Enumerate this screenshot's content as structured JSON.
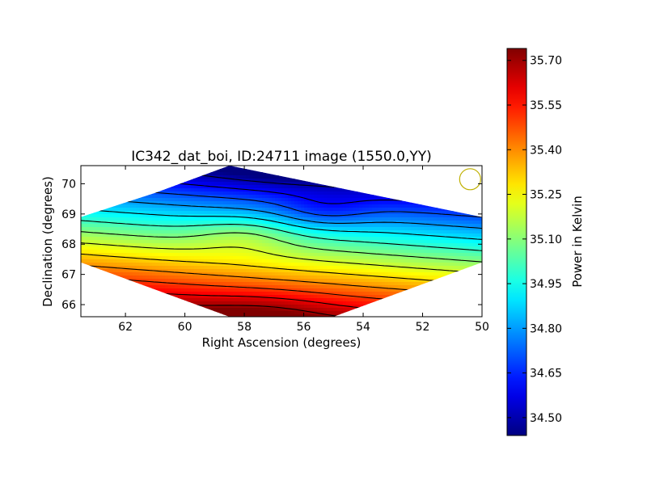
{
  "chart_data": [
    {
      "type": "heatmap",
      "title": "IC342_dat_boi, ID:24711 image (1550.0,YY)",
      "xlabel": "Right Ascension (degrees)",
      "ylabel": "Declination (degrees)",
      "xlim": [
        63.5,
        50.0
      ],
      "ylim": [
        65.6,
        70.6
      ],
      "x_ticks": [
        62,
        60,
        58,
        56,
        54,
        52,
        50
      ],
      "y_ticks": [
        66,
        67,
        68,
        69,
        70
      ],
      "x_tick_labels": [
        "62",
        "60",
        "58",
        "56",
        "54",
        "52",
        "50"
      ],
      "y_tick_labels": [
        "66",
        "67",
        "68",
        "69",
        "70"
      ],
      "grid": false,
      "colormap": "jet",
      "contour_color": "#000000",
      "contour_levels": [
        34.5,
        34.6,
        34.7,
        34.8,
        34.9,
        35.0,
        35.1,
        35.2,
        35.3,
        35.4,
        35.5,
        35.6,
        35.7
      ],
      "footprint": {
        "corners": [
          [
            58.5,
            70.6
          ],
          [
            50.0,
            68.9
          ],
          [
            50.0,
            67.4
          ],
          [
            55.0,
            65.6
          ],
          [
            58.5,
            65.6
          ],
          [
            63.5,
            67.4
          ],
          [
            63.5,
            68.9
          ],
          [
            61.0,
            69.7
          ]
        ]
      },
      "field_model": {
        "base": 35.05,
        "dec_center": 68.1,
        "dec_slope": -0.27,
        "ra_center": 56.75,
        "ra_tilt": 0.02,
        "bumps": [
          {
            "ra": 58.0,
            "dec": 68.3,
            "amp": 0.1,
            "sra": 1.2,
            "sdec": 0.45
          },
          {
            "ra": 55.3,
            "dec": 69.1,
            "amp": -0.1,
            "sra": 1.1,
            "sdec": 0.4
          },
          {
            "ra": 57.3,
            "dec": 65.8,
            "amp": 0.06,
            "sra": 1.6,
            "sdec": 0.45
          },
          {
            "ra": 56.5,
            "dec": 70.5,
            "amp": -0.07,
            "sra": 1.8,
            "sdec": 0.4
          }
        ],
        "min": 34.44,
        "max": 35.74
      },
      "beam_marker": {
        "ra": 50.4,
        "dec": 70.15,
        "color": "#bfb000"
      },
      "colorbar": {
        "label": "Power in Kelvin",
        "min": 34.44,
        "max": 35.74,
        "ticks": [
          34.5,
          34.65,
          34.8,
          34.95,
          35.1,
          35.25,
          35.4,
          35.55,
          35.7
        ],
        "tick_labels": [
          "34.50",
          "34.65",
          "34.80",
          "34.95",
          "35.10",
          "35.25",
          "35.40",
          "35.55",
          "35.70"
        ]
      }
    }
  ]
}
